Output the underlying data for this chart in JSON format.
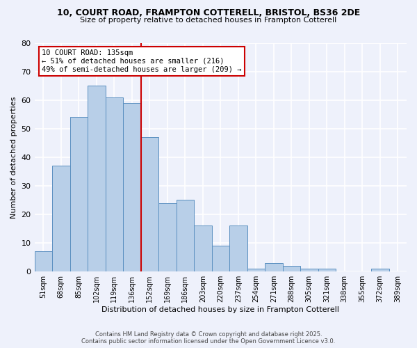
{
  "title_line1": "10, COURT ROAD, FRAMPTON COTTERELL, BRISTOL, BS36 2DE",
  "title_line2": "Size of property relative to detached houses in Frampton Cotterell",
  "xlabel": "Distribution of detached houses by size in Frampton Cotterell",
  "ylabel": "Number of detached properties",
  "categories": [
    "51sqm",
    "68sqm",
    "85sqm",
    "102sqm",
    "119sqm",
    "136sqm",
    "152sqm",
    "169sqm",
    "186sqm",
    "203sqm",
    "220sqm",
    "237sqm",
    "254sqm",
    "271sqm",
    "288sqm",
    "305sqm",
    "321sqm",
    "338sqm",
    "355sqm",
    "372sqm",
    "389sqm"
  ],
  "values": [
    7,
    37,
    54,
    65,
    61,
    59,
    47,
    24,
    25,
    16,
    9,
    16,
    1,
    3,
    2,
    1,
    1,
    0,
    0,
    1,
    0
  ],
  "bar_color": "#b8cfe8",
  "bar_edge_color": "#5a8fc0",
  "background_color": "#eef1fb",
  "grid_color": "#ffffff",
  "annotation_text": "10 COURT ROAD: 135sqm\n← 51% of detached houses are smaller (216)\n49% of semi-detached houses are larger (209) →",
  "annotation_box_color": "#ffffff",
  "annotation_box_edge": "#cc0000",
  "vline_color": "#cc0000",
  "vline_x": 5.5,
  "ylim": [
    0,
    80
  ],
  "yticks": [
    0,
    10,
    20,
    30,
    40,
    50,
    60,
    70,
    80
  ],
  "footer_line1": "Contains HM Land Registry data © Crown copyright and database right 2025.",
  "footer_line2": "Contains public sector information licensed under the Open Government Licence v3.0."
}
